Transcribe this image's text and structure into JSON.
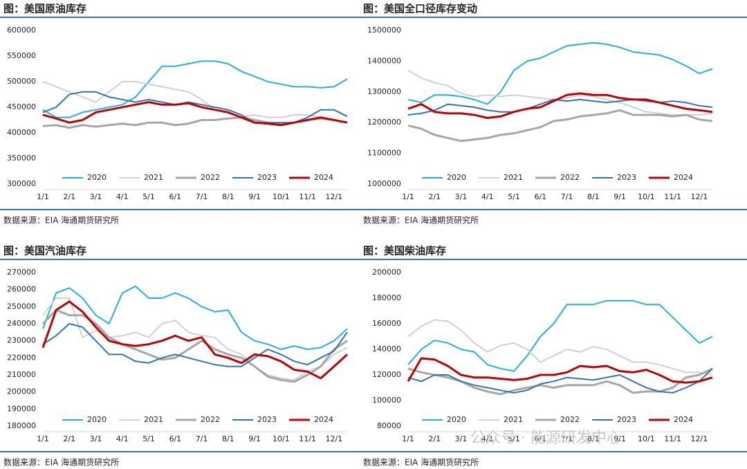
{
  "chart_data": [
    {
      "type": "line",
      "title": "图：美国原油库存",
      "source": "数据来源：EIA   海通期货研究所",
      "categories": [
        "1/1",
        null,
        "2/1",
        null,
        "3/1",
        null,
        "4/1",
        null,
        "5/1",
        null,
        "6/1",
        null,
        "7/1",
        null,
        "8/1",
        null,
        "9/1",
        null,
        "10/1",
        null,
        "11/1",
        null,
        "12/1",
        null
      ],
      "ylim": [
        300000,
        600000
      ],
      "yticks": [
        300000,
        350000,
        400000,
        450000,
        500000,
        550000,
        600000
      ],
      "series": [
        {
          "name": "2020",
          "color": "#1fb0e6",
          "values": [
            445000,
            430000,
            430000,
            440000,
            445000,
            450000,
            455000,
            470000,
            500000,
            530000,
            530000,
            535000,
            540000,
            540000,
            535000,
            520000,
            510000,
            500000,
            495000,
            490000,
            490000,
            488000,
            490000,
            505000
          ]
        },
        {
          "name": "2021",
          "color": "#d0d0d0",
          "values": [
            500000,
            490000,
            480000,
            470000,
            460000,
            480000,
            500000,
            500000,
            495000,
            490000,
            485000,
            480000,
            465000,
            445000,
            440000,
            430000,
            435000,
            430000,
            430000,
            435000,
            435000,
            430000,
            425000,
            420000
          ]
        },
        {
          "name": "2022",
          "color": "#a6a6a6",
          "values": [
            413000,
            415000,
            410000,
            415000,
            412000,
            415000,
            418000,
            415000,
            420000,
            420000,
            415000,
            418000,
            425000,
            425000,
            428000,
            430000,
            425000,
            420000,
            418000,
            420000,
            425000,
            428000,
            425000,
            420000
          ]
        },
        {
          "name": "2023",
          "color": "#2e75b6",
          "values": [
            440000,
            450000,
            475000,
            480000,
            480000,
            470000,
            465000,
            460000,
            465000,
            460000,
            455000,
            460000,
            455000,
            450000,
            445000,
            435000,
            420000,
            420000,
            420000,
            420000,
            430000,
            445000,
            445000,
            432000
          ]
        },
        {
          "name": "2024",
          "color": "#c00000",
          "values": [
            435000,
            428000,
            420000,
            425000,
            440000,
            445000,
            450000,
            455000,
            460000,
            455000,
            455000,
            458000,
            450000,
            445000,
            440000,
            430000,
            420000,
            418000,
            415000,
            420000,
            425000,
            430000,
            425000,
            420000
          ]
        }
      ]
    },
    {
      "type": "line",
      "title": "图：美国全口径库存变动",
      "source": "数据来源：EIA   海通期货研究所",
      "categories": [
        "1/1",
        null,
        "2/1",
        null,
        "3/1",
        null,
        "4/1",
        null,
        "5/1",
        null,
        "6/1",
        null,
        "7/1",
        null,
        "8/1",
        null,
        "9/1",
        null,
        "10/1",
        null,
        "11/1",
        null,
        "12/1",
        null
      ],
      "ylim": [
        1000000,
        1500000
      ],
      "yticks": [
        1000000,
        1100000,
        1200000,
        1300000,
        1400000,
        1500000
      ],
      "series": [
        {
          "name": "2020",
          "color": "#1fb0e6",
          "values": [
            1275000,
            1265000,
            1290000,
            1290000,
            1285000,
            1275000,
            1260000,
            1300000,
            1370000,
            1400000,
            1410000,
            1430000,
            1450000,
            1455000,
            1460000,
            1455000,
            1445000,
            1430000,
            1425000,
            1420000,
            1405000,
            1385000,
            1360000,
            1375000
          ]
        },
        {
          "name": "2021",
          "color": "#d0d0d0",
          "values": [
            1370000,
            1345000,
            1330000,
            1320000,
            1295000,
            1285000,
            1290000,
            1285000,
            1290000,
            1285000,
            1280000,
            1275000,
            1280000,
            1290000,
            1285000,
            1275000,
            1265000,
            1250000,
            1235000,
            1230000,
            1225000,
            1225000,
            1225000,
            1230000
          ]
        },
        {
          "name": "2022",
          "color": "#a6a6a6",
          "values": [
            1190000,
            1180000,
            1160000,
            1150000,
            1140000,
            1145000,
            1150000,
            1160000,
            1165000,
            1175000,
            1185000,
            1205000,
            1210000,
            1220000,
            1225000,
            1230000,
            1240000,
            1225000,
            1225000,
            1225000,
            1220000,
            1225000,
            1210000,
            1205000
          ]
        },
        {
          "name": "2023",
          "color": "#2e75b6",
          "values": [
            1225000,
            1230000,
            1240000,
            1260000,
            1255000,
            1250000,
            1240000,
            1235000,
            1235000,
            1245000,
            1260000,
            1275000,
            1270000,
            1275000,
            1270000,
            1265000,
            1270000,
            1275000,
            1270000,
            1265000,
            1270000,
            1265000,
            1255000,
            1250000
          ]
        },
        {
          "name": "2024",
          "color": "#c00000",
          "values": [
            1245000,
            1260000,
            1235000,
            1230000,
            1230000,
            1225000,
            1215000,
            1220000,
            1235000,
            1245000,
            1250000,
            1270000,
            1290000,
            1295000,
            1290000,
            1290000,
            1280000,
            1275000,
            1275000,
            1265000,
            1255000,
            1245000,
            1240000,
            1235000
          ]
        }
      ]
    },
    {
      "type": "line",
      "title": "图：美国汽油库存",
      "source": "数据来源：EIA   海通期货研究所",
      "categories": [
        "1/1",
        null,
        "2/1",
        null,
        "3/1",
        null,
        "4/1",
        null,
        "5/1",
        null,
        "6/1",
        null,
        "7/1",
        null,
        "8/1",
        null,
        "9/1",
        null,
        "10/1",
        null,
        "11/1",
        null,
        "12/1",
        null
      ],
      "ylim": [
        180000,
        270000
      ],
      "yticks": [
        180000,
        190000,
        200000,
        210000,
        220000,
        230000,
        240000,
        250000,
        260000,
        270000
      ],
      "series": [
        {
          "name": "2020",
          "color": "#1fb0e6",
          "values": [
            237000,
            258000,
            261000,
            255000,
            245000,
            240000,
            258000,
            262000,
            255000,
            255000,
            258000,
            255000,
            250000,
            247000,
            248000,
            235000,
            230000,
            228000,
            225000,
            227000,
            225000,
            226000,
            230000,
            237000
          ]
        },
        {
          "name": "2021",
          "color": "#d0d0d0",
          "values": [
            245000,
            255000,
            255000,
            232000,
            236000,
            232000,
            233000,
            235000,
            232000,
            240000,
            242000,
            235000,
            233000,
            232000,
            225000,
            222000,
            215000,
            210000,
            208000,
            207000,
            212000,
            215000,
            222000,
            226000
          ]
        },
        {
          "name": "2022",
          "color": "#a6a6a6",
          "values": [
            240000,
            248000,
            245000,
            245000,
            240000,
            232000,
            228000,
            225000,
            222000,
            219000,
            220000,
            225000,
            230000,
            225000,
            222000,
            220000,
            215000,
            209000,
            207000,
            206000,
            210000,
            215000,
            225000,
            230000
          ]
        },
        {
          "name": "2023",
          "color": "#2e75b6",
          "values": [
            228000,
            233000,
            240000,
            238000,
            230000,
            222000,
            222000,
            218000,
            217000,
            220000,
            222000,
            220000,
            218000,
            216000,
            215000,
            215000,
            220000,
            225000,
            222000,
            218000,
            216000,
            220000,
            224000,
            235000
          ]
        },
        {
          "name": "2024",
          "color": "#c00000",
          "values": [
            226000,
            248000,
            253000,
            247000,
            238000,
            230000,
            228000,
            227000,
            228000,
            230000,
            233000,
            230000,
            232000,
            222000,
            220000,
            217000,
            222000,
            221000,
            218000,
            213000,
            212000,
            208000,
            215000,
            222000
          ]
        }
      ]
    },
    {
      "type": "line",
      "title": "图：美国柴油库存",
      "source": "数据来源：EIA   海通期货研究所",
      "categories": [
        "1/1",
        null,
        "2/1",
        null,
        "3/1",
        null,
        "4/1",
        null,
        "5/1",
        null,
        "6/1",
        null,
        "7/1",
        null,
        "8/1",
        null,
        "9/1",
        null,
        "10/1",
        null,
        "11/1",
        null,
        "12/1",
        null
      ],
      "ylim": [
        80000,
        200000
      ],
      "yticks": [
        80000,
        100000,
        120000,
        140000,
        160000,
        180000,
        200000
      ],
      "series": [
        {
          "name": "2020",
          "color": "#1fb0e6",
          "values": [
            128000,
            140000,
            147000,
            145000,
            140000,
            138000,
            128000,
            125000,
            123000,
            135000,
            150000,
            160000,
            175000,
            175000,
            175000,
            178000,
            178000,
            178000,
            175000,
            175000,
            165000,
            155000,
            145000,
            150000
          ]
        },
        {
          "name": "2021",
          "color": "#d0d0d0",
          "values": [
            150000,
            158000,
            163000,
            162000,
            155000,
            145000,
            138000,
            143000,
            145000,
            140000,
            130000,
            135000,
            140000,
            138000,
            142000,
            140000,
            135000,
            130000,
            130000,
            128000,
            125000,
            122000,
            122000,
            120000
          ]
        },
        {
          "name": "2022",
          "color": "#a6a6a6",
          "values": [
            125000,
            122000,
            120000,
            118000,
            115000,
            110000,
            107000,
            105000,
            108000,
            110000,
            112000,
            110000,
            112000,
            112000,
            112000,
            115000,
            112000,
            106000,
            107000,
            107000,
            110000,
            118000,
            120000,
            125000
          ]
        },
        {
          "name": "2023",
          "color": "#2e75b6",
          "values": [
            118000,
            115000,
            120000,
            120000,
            115000,
            112000,
            110000,
            108000,
            106000,
            108000,
            113000,
            115000,
            118000,
            117000,
            116000,
            118000,
            120000,
            115000,
            110000,
            107000,
            106000,
            110000,
            115000,
            125000
          ]
        },
        {
          "name": "2024",
          "color": "#c00000",
          "values": [
            115000,
            133000,
            132000,
            127000,
            120000,
            118000,
            118000,
            117000,
            116000,
            117000,
            120000,
            120000,
            122000,
            127000,
            126000,
            127000,
            123000,
            122000,
            124000,
            120000,
            115000,
            114000,
            115000,
            118000
          ]
        }
      ]
    }
  ],
  "watermark": "公众号 · 能源研发中心"
}
